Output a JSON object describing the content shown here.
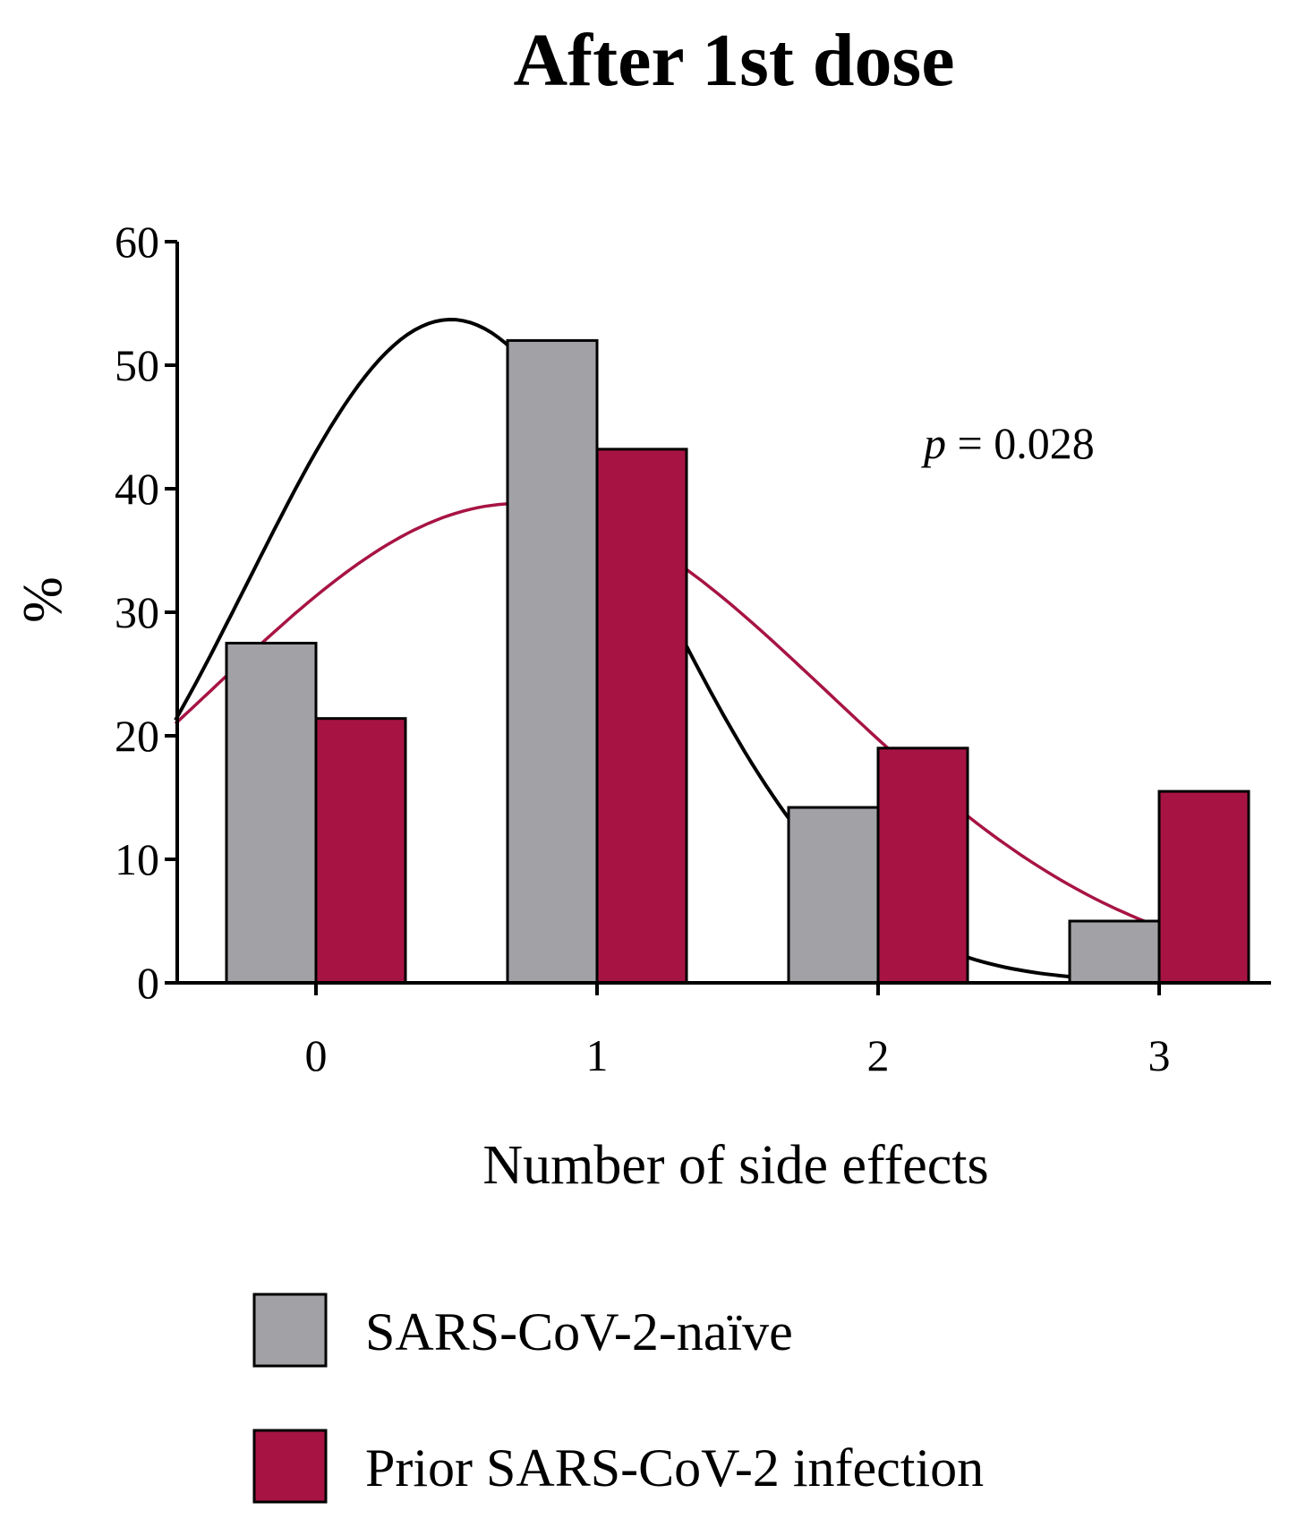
{
  "chart_data": {
    "type": "bar",
    "title": "After 1st dose",
    "xlabel": "Number of side effects",
    "ylabel": "%",
    "categories": [
      "0",
      "1",
      "2",
      "3"
    ],
    "ylim": [
      0,
      60
    ],
    "yticks": [
      0,
      10,
      20,
      30,
      40,
      50,
      60
    ],
    "xlim": [
      -0.5,
      3.5
    ],
    "grid": false,
    "legend_position": "bottom-left",
    "series": [
      {
        "name": "SARS-CoV-2-naïve",
        "color": "#a2a1a6",
        "values": [
          27.5,
          52,
          14.2,
          5
        ]
      },
      {
        "name": "Prior SARS-CoV-2 infection",
        "color": "#a71443",
        "values": [
          21.4,
          43.2,
          19,
          15.5
        ]
      }
    ],
    "fit_curves": [
      {
        "name": "SARS-CoV-2-naïve fit",
        "color": "#000000",
        "amplitude": 53.7,
        "mean": 0.48,
        "sd": 0.72,
        "x_range": [
          -0.5,
          3.0
        ]
      },
      {
        "name": "Prior SARS-CoV-2 infection fit",
        "color": "#a71443",
        "amplitude": 38.8,
        "mean": 0.72,
        "sd": 1.1,
        "x_range": [
          -0.5,
          3.0
        ]
      }
    ],
    "annotations": [
      {
        "text_italic": "p",
        "text": " = 0.028",
        "x": 2.3,
        "y": 42.5
      }
    ]
  }
}
